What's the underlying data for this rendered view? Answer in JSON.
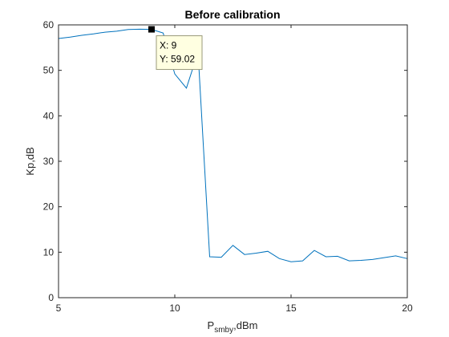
{
  "chart_data": {
    "type": "line",
    "title": "Before calibration",
    "ylabel": "Kp,dB",
    "xlabel_main": "P",
    "xlabel_sub": "smby",
    "xlabel_rest": ",dBm",
    "xlim": [
      5,
      20
    ],
    "ylim": [
      0,
      60
    ],
    "xticks": [
      5,
      10,
      15,
      20
    ],
    "yticks": [
      0,
      10,
      20,
      30,
      40,
      50,
      60
    ],
    "grid": false,
    "series": [
      {
        "color": "#0072BD",
        "x": [
          5,
          5.5,
          6,
          6.5,
          7,
          7.5,
          8,
          8.5,
          9,
          9.5,
          10,
          10.5,
          11,
          11.5,
          12,
          12.5,
          13,
          13.5,
          14,
          14.5,
          15,
          15.5,
          16,
          16.5,
          17,
          17.5,
          18,
          18.5,
          19,
          19.5,
          20
        ],
        "y": [
          57,
          57.3,
          57.7,
          58,
          58.4,
          58.6,
          59,
          59.05,
          59.02,
          58.2,
          49.2,
          46.1,
          54,
          9,
          8.9,
          11.5,
          9.5,
          9.8,
          10.2,
          8.6,
          7.9,
          8.1,
          10.4,
          9,
          9.1,
          8.1,
          8.2,
          8.4,
          8.8,
          9.2,
          8.6
        ]
      }
    ],
    "datatip": {
      "x_text": "X: 9",
      "y_text": "Y: 59.02",
      "x": 9,
      "y": 59.02
    }
  }
}
